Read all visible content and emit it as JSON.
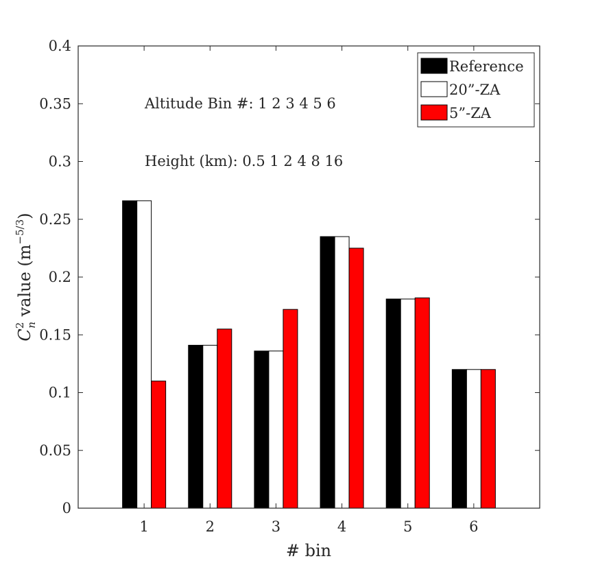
{
  "chart_data": {
    "type": "bar",
    "xlabel": "# bin",
    "ylabel_main": "C",
    "ylabel_sup": "2",
    "ylabel_sub": "n",
    "ylabel_rest": " value (m",
    "ylabel_unit_sup": "−5/3",
    "ylabel_close": ")",
    "categories": [
      "1",
      "2",
      "3",
      "4",
      "5",
      "6"
    ],
    "ylim": [
      0,
      0.4
    ],
    "yticks": [
      0,
      0.05,
      0.1,
      0.15,
      0.2,
      0.25,
      0.3,
      0.35,
      0.4
    ],
    "ytick_labels": [
      "0",
      "0.05",
      "0.1",
      "0.15",
      "0.2",
      "0.25",
      "0.3",
      "0.35",
      "0.4"
    ],
    "series": [
      {
        "name": "Reference",
        "color": "#000000",
        "values": [
          0.266,
          0.141,
          0.136,
          0.235,
          0.181,
          0.12
        ]
      },
      {
        "name": "20”-ZA",
        "color": "#ffffff",
        "values": [
          0.266,
          0.141,
          0.136,
          0.235,
          0.181,
          0.12
        ]
      },
      {
        "name": "5”-ZA",
        "color": "#ff0000",
        "values": [
          0.11,
          0.155,
          0.172,
          0.225,
          0.182,
          0.12
        ]
      }
    ],
    "legend_position": "top-right",
    "grid": false,
    "annotations": [
      "Altitude Bin #:  1  2  3  4  5  6",
      "Height (km):  0.5  1  2  4  8  16"
    ]
  }
}
